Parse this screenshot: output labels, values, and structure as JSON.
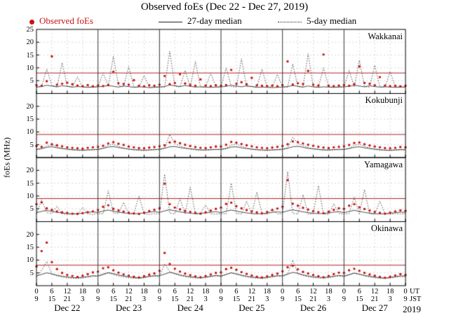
{
  "legend": {
    "observed": "Observed foEs",
    "median27": "27-day median",
    "median5": "5-day median"
  },
  "axis": {
    "ut_label": "UT",
    "jst_label": "JST",
    "year_label": "2019",
    "y_ticks_first_panel": [
      25,
      20,
      15,
      10,
      5
    ],
    "y_ticks_other_panels": [
      20,
      15,
      10,
      5
    ],
    "x_ut": [
      "0",
      "6",
      "12",
      "18",
      "0",
      "6",
      "12",
      "18",
      "0",
      "6",
      "12",
      "18",
      "0",
      "6",
      "12",
      "18",
      "0",
      "6",
      "12",
      "18",
      "0",
      "6",
      "12",
      "18",
      "0"
    ],
    "x_jst": [
      "9",
      "15",
      "21",
      "3",
      "9",
      "15",
      "21",
      "3",
      "9",
      "15",
      "21",
      "3",
      "9",
      "15",
      "21",
      "3",
      "9",
      "15",
      "21",
      "3",
      "9",
      "15",
      "21",
      "3",
      "9"
    ]
  },
  "colors": {
    "observed": "#cc1111",
    "median": "#222222",
    "threshold": "#b22222",
    "grid": "#c8c8c8",
    "frame": "#000000",
    "dayline": "#333333"
  },
  "chart_data": {
    "type": "scatter",
    "title": "Observed foEs (Dec 22 - Dec 27, 2019)",
    "ylabel": "foEs (MHz)",
    "ylim": [
      0,
      25
    ],
    "x_hours_range": [
      0,
      144
    ],
    "x_step_hours": 2,
    "x_day_labels": [
      "Dec 22",
      "Dec 23",
      "Dec 24",
      "Dec 25",
      "Dec 26",
      "Dec 27"
    ],
    "series_names": [
      "Observed foEs",
      "27-day median",
      "5-day median"
    ],
    "panels": [
      {
        "station": "Wakkanai",
        "threshold_mhz": 8.0,
        "observed": [
          3.2,
          3.0,
          4.8,
          14.5,
          3.4,
          3.8,
          4.2,
          3.6,
          3.1,
          2.9,
          3.3,
          2.8,
          3.1,
          2.9,
          3.3,
          8.5,
          4.0,
          3.7,
          3.4,
          5.2,
          3.0,
          2.8,
          3.2,
          3.0,
          3.4,
          6.8,
          3.6,
          4.1,
          7.5,
          3.9,
          3.3,
          3.0,
          5.5,
          3.1,
          2.9,
          3.2,
          3.0,
          3.3,
          9.2,
          3.8,
          4.4,
          3.6,
          6.1,
          3.2,
          3.0,
          2.9,
          3.1,
          2.8,
          3.2,
          12.5,
          3.5,
          4.0,
          3.7,
          8.8,
          3.4,
          3.1,
          15.2,
          3.0,
          2.9,
          3.1,
          3.3,
          3.0,
          3.6,
          10.5,
          4.1,
          3.8,
          3.2,
          6.4,
          3.1,
          2.9,
          3.0,
          2.8,
          3.0
        ],
        "median_5day": [
          2.5,
          2.8,
          9.5,
          3.2,
          2.6,
          12.0,
          2.9,
          2.5,
          6.5,
          2.4,
          2.6,
          2.5,
          2.6,
          8.0,
          2.8,
          14.5,
          3.0,
          2.7,
          10.5,
          2.5,
          2.6,
          7.0,
          2.5,
          2.6,
          2.7,
          2.5,
          16.5,
          2.9,
          2.6,
          9.0,
          2.5,
          12.5,
          2.6,
          2.5,
          8.0,
          2.6,
          2.5,
          10.0,
          2.7,
          2.5,
          13.5,
          2.6,
          2.8,
          2.5,
          9.5,
          2.6,
          2.5,
          7.5,
          2.6,
          2.5,
          11.5,
          2.7,
          2.5,
          15.5,
          2.6,
          2.5,
          10.0,
          2.7,
          2.5,
          2.6,
          2.5,
          9.0,
          2.6,
          13.0,
          2.7,
          2.5,
          11.0,
          2.6,
          2.5,
          8.5,
          2.6,
          2.5,
          2.6
        ],
        "median_27day": [
          2.5,
          2.7,
          3.2,
          2.9,
          2.6,
          3.0,
          2.8,
          2.5,
          2.7,
          2.6,
          2.4,
          2.5,
          2.6,
          2.8,
          3.1,
          2.8,
          2.5,
          2.9,
          2.7,
          2.4,
          2.6,
          2.5,
          2.3,
          2.4,
          2.5,
          2.7,
          3.3,
          3.0,
          2.7,
          3.1,
          2.8,
          2.5,
          2.6,
          2.5,
          2.4,
          2.5,
          2.6,
          2.8,
          3.2,
          2.9,
          2.6,
          3.0,
          2.7,
          2.4,
          2.5,
          2.4,
          2.3,
          2.4,
          2.5,
          2.7,
          3.1,
          2.8,
          2.5,
          2.9,
          2.6,
          2.4,
          2.6,
          2.5,
          2.4,
          2.5,
          2.6,
          2.8,
          3.2,
          2.9,
          2.6,
          3.0,
          2.7,
          2.5,
          2.6,
          2.5,
          2.4,
          2.5,
          2.5
        ]
      },
      {
        "station": "Kokubunji",
        "threshold_mhz": 9.0,
        "observed": [
          4.5,
          4.2,
          5.8,
          5.2,
          4.8,
          4.4,
          4.0,
          3.8,
          3.6,
          3.5,
          3.8,
          4.0,
          4.2,
          4.6,
          5.5,
          6.0,
          5.4,
          4.9,
          4.3,
          4.0,
          3.7,
          3.6,
          3.9,
          4.1,
          4.4,
          4.8,
          5.9,
          6.2,
          5.6,
          5.0,
          4.5,
          4.1,
          3.8,
          3.7,
          4.0,
          4.3,
          4.3,
          5.0,
          6.1,
          5.8,
          5.3,
          4.8,
          4.4,
          4.0,
          3.8,
          3.6,
          3.9,
          4.2,
          4.5,
          5.2,
          6.3,
          6.0,
          5.5,
          5.0,
          4.6,
          4.2,
          3.9,
          3.7,
          4.0,
          4.2,
          4.4,
          4.9,
          5.7,
          5.9,
          5.2,
          4.7,
          4.3,
          4.0,
          3.7,
          3.6,
          3.8,
          4.1,
          4.0
        ],
        "median_5day": [
          3.0,
          3.5,
          4.5,
          5.0,
          4.2,
          3.6,
          3.2,
          2.9,
          2.8,
          2.7,
          2.9,
          3.0,
          3.1,
          3.6,
          4.8,
          5.2,
          4.4,
          3.7,
          3.3,
          3.0,
          2.8,
          2.7,
          2.9,
          3.1,
          3.0,
          3.7,
          9.0,
          5.4,
          4.5,
          3.8,
          3.3,
          3.0,
          2.9,
          2.8,
          3.0,
          3.1,
          3.1,
          3.6,
          4.9,
          5.3,
          4.4,
          3.7,
          3.2,
          3.0,
          2.8,
          2.7,
          2.9,
          3.0,
          3.0,
          3.8,
          8.0,
          5.5,
          4.6,
          3.9,
          3.4,
          3.1,
          2.9,
          2.8,
          3.0,
          3.1,
          3.1,
          3.6,
          4.8,
          5.2,
          4.3,
          3.7,
          3.2,
          2.9,
          2.8,
          2.7,
          2.9,
          3.0,
          3.0
        ],
        "median_27day": [
          3.2,
          3.5,
          4.0,
          4.2,
          3.8,
          3.5,
          3.3,
          3.1,
          3.0,
          2.9,
          3.0,
          3.1,
          3.2,
          3.6,
          4.1,
          4.3,
          3.9,
          3.6,
          3.3,
          3.1,
          3.0,
          2.9,
          3.0,
          3.1,
          3.3,
          3.6,
          4.2,
          4.3,
          3.9,
          3.6,
          3.4,
          3.2,
          3.0,
          3.0,
          3.1,
          3.2,
          3.2,
          3.5,
          4.1,
          4.2,
          3.8,
          3.5,
          3.3,
          3.1,
          3.0,
          2.9,
          3.0,
          3.1,
          3.3,
          3.6,
          4.2,
          4.4,
          4.0,
          3.6,
          3.4,
          3.2,
          3.0,
          3.0,
          3.1,
          3.2,
          3.2,
          3.5,
          4.0,
          4.2,
          3.8,
          3.5,
          3.3,
          3.1,
          2.9,
          2.9,
          3.0,
          3.1,
          3.1
        ]
      },
      {
        "station": "Yamagawa",
        "threshold_mhz": 9.0,
        "observed": [
          6.8,
          7.5,
          5.2,
          4.6,
          4.0,
          3.6,
          3.4,
          3.1,
          3.0,
          3.3,
          3.7,
          4.0,
          4.5,
          5.8,
          6.4,
          5.0,
          4.4,
          3.9,
          3.5,
          3.2,
          3.0,
          3.5,
          4.1,
          4.6,
          5.2,
          14.8,
          6.8,
          5.5,
          4.8,
          4.2,
          3.8,
          3.4,
          3.1,
          3.6,
          4.3,
          5.0,
          5.5,
          6.9,
          7.4,
          6.0,
          5.2,
          4.5,
          4.0,
          3.6,
          3.2,
          3.8,
          4.5,
          5.1,
          5.8,
          16.2,
          7.0,
          6.2,
          5.4,
          4.7,
          4.1,
          3.7,
          3.3,
          3.9,
          4.6,
          5.2,
          5.0,
          6.2,
          6.8,
          5.6,
          4.9,
          4.3,
          3.8,
          3.4,
          3.1,
          3.5,
          4.0,
          4.4,
          4.2
        ],
        "median_5day": [
          3.0,
          8.5,
          3.5,
          3.2,
          6.0,
          3.0,
          2.8,
          3.1,
          2.9,
          5.5,
          3.0,
          2.8,
          3.2,
          3.0,
          12.0,
          3.4,
          3.1,
          7.5,
          2.9,
          3.2,
          10.0,
          3.0,
          2.8,
          3.1,
          3.0,
          18.5,
          3.3,
          3.1,
          9.0,
          3.0,
          13.5,
          2.9,
          3.2,
          6.5,
          3.0,
          2.9,
          3.1,
          3.0,
          15.0,
          3.2,
          3.0,
          8.0,
          2.9,
          11.5,
          3.1,
          2.9,
          5.0,
          3.0,
          3.0,
          19.5,
          3.2,
          3.0,
          10.5,
          2.9,
          3.1,
          14.0,
          3.0,
          2.8,
          7.0,
          3.1,
          3.0,
          3.1,
          9.5,
          3.0,
          12.5,
          3.1,
          2.9,
          8.0,
          3.0,
          2.9,
          3.1,
          3.0,
          3.0
        ],
        "median_27day": [
          3.5,
          4.0,
          4.4,
          4.0,
          3.6,
          3.4,
          3.2,
          3.0,
          3.1,
          3.3,
          3.6,
          3.8,
          3.6,
          4.1,
          4.5,
          4.1,
          3.7,
          3.4,
          3.2,
          3.1,
          3.1,
          3.4,
          3.7,
          3.9,
          3.6,
          4.2,
          4.6,
          4.2,
          3.8,
          3.5,
          3.3,
          3.1,
          3.2,
          3.4,
          3.7,
          3.9,
          3.5,
          4.1,
          4.5,
          4.1,
          3.7,
          3.4,
          3.2,
          3.0,
          3.1,
          3.3,
          3.6,
          3.8,
          3.6,
          4.2,
          4.6,
          4.2,
          3.8,
          3.5,
          3.3,
          3.1,
          3.2,
          3.4,
          3.7,
          3.9,
          3.5,
          4.0,
          4.4,
          4.0,
          3.6,
          3.3,
          3.1,
          3.0,
          3.1,
          3.3,
          3.5,
          3.7,
          3.6
        ]
      },
      {
        "station": "Okinawa",
        "threshold_mhz": 8.0,
        "observed": [
          7.5,
          13.5,
          16.8,
          9.2,
          6.5,
          5.0,
          4.2,
          3.8,
          3.4,
          3.9,
          4.5,
          5.2,
          5.5,
          6.8,
          7.2,
          6.0,
          5.1,
          4.4,
          3.9,
          3.5,
          3.2,
          3.7,
          4.3,
          4.8,
          5.8,
          12.8,
          8.5,
          6.6,
          5.5,
          4.7,
          4.1,
          3.6,
          3.3,
          3.8,
          4.4,
          5.0,
          5.2,
          6.5,
          7.0,
          6.2,
          5.3,
          4.6,
          4.0,
          3.5,
          3.2,
          3.6,
          4.2,
          4.7,
          5.6,
          7.2,
          7.8,
          6.4,
          5.4,
          4.8,
          4.2,
          3.7,
          3.3,
          3.8,
          4.5,
          5.1,
          5.0,
          6.0,
          6.6,
          5.8,
          5.0,
          4.4,
          3.9,
          3.4,
          3.1,
          3.5,
          4.0,
          4.5,
          4.2
        ],
        "median_5day": [
          3.5,
          6.0,
          9.5,
          4.5,
          3.8,
          3.4,
          3.1,
          2.9,
          2.8,
          3.0,
          3.3,
          3.6,
          3.6,
          4.2,
          5.0,
          4.4,
          3.8,
          3.4,
          3.1,
          2.9,
          2.8,
          3.1,
          3.4,
          3.7,
          3.5,
          8.5,
          5.5,
          4.6,
          3.9,
          3.5,
          3.2,
          3.0,
          2.9,
          3.1,
          3.5,
          3.8,
          3.6,
          4.3,
          5.1,
          4.5,
          3.9,
          3.4,
          3.1,
          2.9,
          2.8,
          3.0,
          3.4,
          3.7,
          3.5,
          4.5,
          10.0,
          4.7,
          4.0,
          3.5,
          3.2,
          3.0,
          2.9,
          3.1,
          3.5,
          3.8,
          3.5,
          4.2,
          4.9,
          4.4,
          3.8,
          3.4,
          3.1,
          2.9,
          2.8,
          3.0,
          3.3,
          3.6,
          3.5
        ],
        "median_27day": [
          3.8,
          4.4,
          5.0,
          4.6,
          4.1,
          3.7,
          3.4,
          3.2,
          3.1,
          3.3,
          3.6,
          3.9,
          3.8,
          4.5,
          5.1,
          4.7,
          4.2,
          3.8,
          3.5,
          3.2,
          3.1,
          3.3,
          3.7,
          3.9,
          3.9,
          4.5,
          5.2,
          4.8,
          4.2,
          3.8,
          3.5,
          3.3,
          3.1,
          3.4,
          3.7,
          4.0,
          3.8,
          4.4,
          5.0,
          4.6,
          4.1,
          3.7,
          3.4,
          3.2,
          3.1,
          3.3,
          3.6,
          3.9,
          3.9,
          4.5,
          5.2,
          4.8,
          4.2,
          3.8,
          3.5,
          3.3,
          3.2,
          3.4,
          3.7,
          4.0,
          3.8,
          4.3,
          4.9,
          4.5,
          4.0,
          3.7,
          3.4,
          3.1,
          3.0,
          3.2,
          3.5,
          3.8,
          3.8
        ]
      }
    ]
  }
}
